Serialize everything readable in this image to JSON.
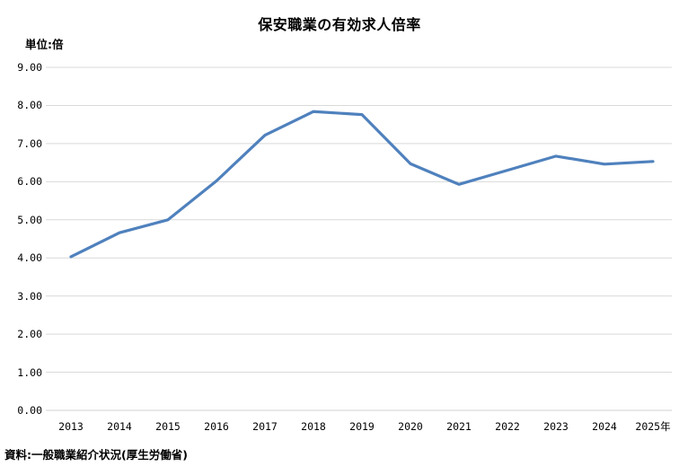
{
  "chart": {
    "title": "保安職業の有効求人倍率",
    "unit_label": "単位:倍",
    "source": "資料:一般職業紹介状況(厚生労働省)"
  },
  "chart_data": {
    "type": "line",
    "title": "保安職業の有効求人倍率",
    "categories": [
      "2013",
      "2014",
      "2015",
      "2016",
      "2017",
      "2018",
      "2019",
      "2020",
      "2021",
      "2022",
      "2023",
      "2024",
      "2025年"
    ],
    "series": [
      {
        "name": "保安職業の有効求人倍率",
        "values": [
          4.03,
          4.66,
          5.0,
          6.02,
          7.22,
          7.84,
          7.76,
          6.47,
          5.93,
          6.3,
          6.67,
          6.46,
          6.53
        ]
      }
    ],
    "xlabel": "",
    "ylabel": "単位:倍",
    "ylim": [
      0,
      9
    ],
    "ytick_step": 1,
    "ytick_decimals": 2,
    "grid": true,
    "legend_position": "none",
    "line_color": "#4F81BD",
    "grid_color": "#D9D9D9",
    "axis_line_color": "#D0D0D0",
    "text_color": "#000000"
  }
}
